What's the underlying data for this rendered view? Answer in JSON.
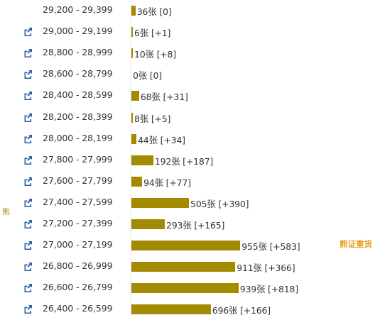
{
  "side_label": "熊",
  "bear_badge": "熊证重货",
  "colors": {
    "bar": "#a38b00",
    "icon": "#2a5fa5",
    "badge": "#e8a020",
    "side_label": "#b08a00"
  },
  "icons": {
    "row_link": "external-link-icon"
  },
  "rows": [
    {
      "range": "29,200 - 29,399",
      "value": 36,
      "label": "36张 [0]",
      "has_link": false
    },
    {
      "range": "29,000 - 29,199",
      "value": 6,
      "label": "6张 [+1]",
      "has_link": true
    },
    {
      "range": "28,800 - 28,999",
      "value": 10,
      "label": "10张 [+8]",
      "has_link": true
    },
    {
      "range": "28,600 - 28,799",
      "value": 0,
      "label": "0张 [0]",
      "has_link": true
    },
    {
      "range": "28,400 - 28,599",
      "value": 68,
      "label": "68张 [+31]",
      "has_link": true
    },
    {
      "range": "28,200 - 28,399",
      "value": 8,
      "label": "8张 [+5]",
      "has_link": true
    },
    {
      "range": "28,000 - 28,199",
      "value": 44,
      "label": "44张 [+34]",
      "has_link": true
    },
    {
      "range": "27,800 - 27,999",
      "value": 192,
      "label": "192张 [+187]",
      "has_link": true
    },
    {
      "range": "27,600 - 27,799",
      "value": 94,
      "label": "94张 [+77]",
      "has_link": true
    },
    {
      "range": "27,400 - 27,599",
      "value": 505,
      "label": "505张 [+390]",
      "has_link": true
    },
    {
      "range": "27,200 - 27,399",
      "value": 293,
      "label": "293张 [+165]",
      "has_link": true
    },
    {
      "range": "27,000 - 27,199",
      "value": 955,
      "label": "955张 [+583]",
      "has_link": true
    },
    {
      "range": "26,800 - 26,999",
      "value": 911,
      "label": "911张 [+366]",
      "has_link": true
    },
    {
      "range": "26,600 - 26,799",
      "value": 939,
      "label": "939张 [+818]",
      "has_link": true
    },
    {
      "range": "26,400 - 26,599",
      "value": 696,
      "label": "696张 [+166]",
      "has_link": true
    }
  ]
}
